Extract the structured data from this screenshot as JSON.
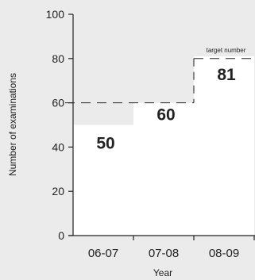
{
  "chart_data": {
    "type": "bar",
    "categories": [
      "06-07",
      "07-08",
      "08-09"
    ],
    "values": [
      50,
      60,
      81
    ],
    "value_labels": [
      "50",
      "60",
      "81"
    ],
    "xlabel": "Year",
    "ylabel": "Number of examinations",
    "ylim": [
      0,
      100
    ],
    "yticks": [
      0,
      20,
      40,
      60,
      80,
      100
    ],
    "grid": false,
    "reference_lines": [
      {
        "value": 60,
        "style": "dashed",
        "label": ""
      },
      {
        "value": 81,
        "style": "dashed",
        "label": "target number"
      }
    ],
    "colors": {
      "background": "#ebebeb",
      "bar": "#ffffff",
      "axis": "#222222",
      "text": "#222222"
    }
  }
}
